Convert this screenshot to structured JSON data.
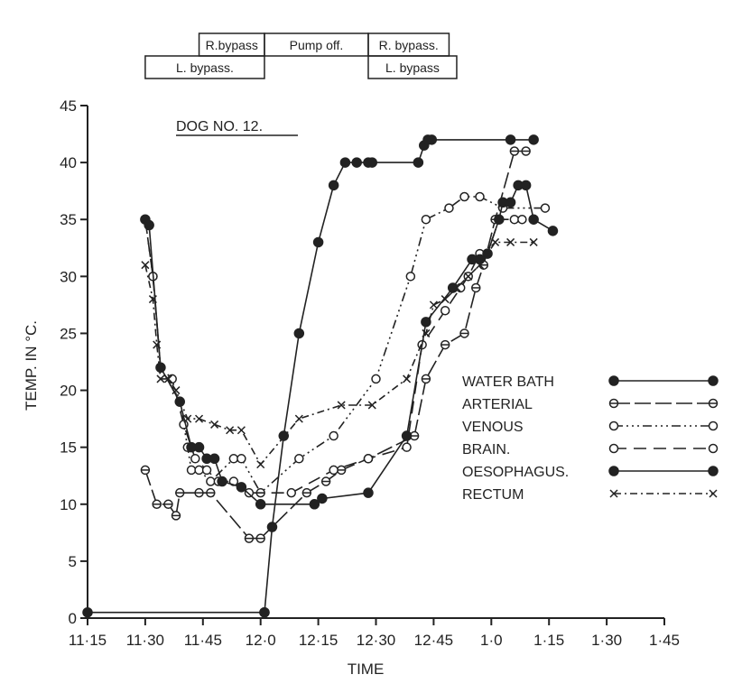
{
  "chart_data": {
    "type": "line",
    "title": "DOG NO. 12.",
    "xlabel": "TIME",
    "ylabel": "TEMP. IN °C.",
    "xlim": [
      0,
      150
    ],
    "ylim": [
      0,
      45
    ],
    "grid": false,
    "legend_position": "center-right",
    "x_ticks": [
      {
        "value": 0,
        "label": "11·15"
      },
      {
        "value": 15,
        "label": "11·30"
      },
      {
        "value": 30,
        "label": "11·45"
      },
      {
        "value": 45,
        "label": "12·0"
      },
      {
        "value": 60,
        "label": "12·15"
      },
      {
        "value": 75,
        "label": "12·30"
      },
      {
        "value": 90,
        "label": "12·45"
      },
      {
        "value": 105,
        "label": "1·0"
      },
      {
        "value": 120,
        "label": "1·15"
      },
      {
        "value": 135,
        "label": "1·30"
      },
      {
        "value": 150,
        "label": "1·45"
      }
    ],
    "y_ticks": [
      {
        "value": 0,
        "label": "0"
      },
      {
        "value": 5,
        "label": "5"
      },
      {
        "value": 10,
        "label": "10"
      },
      {
        "value": 15,
        "label": "15"
      },
      {
        "value": 20,
        "label": "20"
      },
      {
        "value": 25,
        "label": "25"
      },
      {
        "value": 30,
        "label": "30"
      },
      {
        "value": 35,
        "label": "35"
      },
      {
        "value": 40,
        "label": "40"
      },
      {
        "value": 45,
        "label": "45"
      }
    ],
    "phases": [
      {
        "label": "R.bypass",
        "start": 29,
        "end": 46,
        "row": "upper"
      },
      {
        "label": "Pump off.",
        "start": 46,
        "end": 73,
        "row": "upper"
      },
      {
        "label": "R. bypass.",
        "start": 73,
        "end": 94,
        "row": "upper"
      },
      {
        "label": "L. bypass.",
        "start": 15,
        "end": 46,
        "row": "lower"
      },
      {
        "label": "L. bypass",
        "start": 73,
        "end": 96,
        "row": "lower"
      }
    ],
    "series": [
      {
        "name": "WATER BATH",
        "dash": "",
        "marker": "filled",
        "points": [
          [
            0,
            0.5
          ],
          [
            46,
            0.5
          ],
          [
            46,
            0.5
          ],
          [
            48,
            8
          ],
          [
            51,
            16
          ],
          [
            55,
            25
          ],
          [
            60,
            33
          ],
          [
            64,
            38
          ],
          [
            67,
            40
          ],
          [
            70,
            40
          ],
          [
            73,
            40
          ],
          [
            74,
            40
          ],
          [
            86,
            40
          ],
          [
            87.5,
            41.5
          ],
          [
            88.5,
            42
          ],
          [
            89.5,
            42
          ],
          [
            110,
            42
          ],
          [
            116,
            42
          ]
        ]
      },
      {
        "name": "ARTERIAL",
        "dash": "18 5",
        "marker": "crossed",
        "points": [
          [
            15,
            13
          ],
          [
            18,
            10
          ],
          [
            21,
            10
          ],
          [
            23,
            9
          ],
          [
            24,
            11
          ],
          [
            29,
            11
          ],
          [
            32,
            11
          ],
          [
            42,
            7
          ],
          [
            45,
            7
          ],
          [
            57,
            11
          ],
          [
            62,
            12
          ],
          [
            66,
            13
          ],
          [
            73,
            14
          ],
          [
            85,
            16
          ],
          [
            88,
            21
          ],
          [
            93,
            24
          ],
          [
            98,
            25
          ],
          [
            101,
            29
          ],
          [
            103,
            31
          ],
          [
            106,
            35
          ],
          [
            111,
            41
          ],
          [
            114,
            41
          ]
        ]
      },
      {
        "name": "VENOUS",
        "dash": "10 4 2 4 2 4 2 4",
        "marker": "open",
        "points": [
          [
            15,
            35
          ],
          [
            17,
            30
          ],
          [
            19,
            22
          ],
          [
            24,
            19
          ],
          [
            26,
            15
          ],
          [
            27,
            13
          ],
          [
            29,
            13
          ],
          [
            32,
            12
          ],
          [
            38,
            14
          ],
          [
            40,
            14
          ],
          [
            45,
            11
          ],
          [
            55,
            14
          ],
          [
            64,
            16
          ],
          [
            75,
            21
          ],
          [
            84,
            30
          ],
          [
            88,
            35
          ],
          [
            94,
            36
          ],
          [
            98,
            37
          ],
          [
            102,
            37
          ],
          [
            108,
            36
          ],
          [
            119,
            36
          ]
        ]
      },
      {
        "name": "BRAIN.",
        "dash": "14 8",
        "marker": "open",
        "points": [
          [
            15,
            35
          ],
          [
            17,
            30
          ],
          [
            19,
            22
          ],
          [
            22,
            21
          ],
          [
            25,
            17
          ],
          [
            27,
            15
          ],
          [
            28,
            14
          ],
          [
            31,
            13
          ],
          [
            34,
            12
          ],
          [
            38,
            12
          ],
          [
            42,
            11
          ],
          [
            53,
            11
          ],
          [
            64,
            13
          ],
          [
            73,
            14
          ],
          [
            83,
            15
          ],
          [
            87,
            24
          ],
          [
            93,
            27
          ],
          [
            97,
            29
          ],
          [
            99,
            30
          ],
          [
            102,
            32
          ],
          [
            104,
            32
          ],
          [
            107,
            35
          ],
          [
            111,
            35
          ],
          [
            113,
            35
          ]
        ]
      },
      {
        "name": "OESOPHAGUS.",
        "dash": "",
        "marker": "filled",
        "points": [
          [
            15,
            35
          ],
          [
            16,
            34.5
          ],
          [
            19,
            22
          ],
          [
            24,
            19
          ],
          [
            27,
            15
          ],
          [
            29,
            15
          ],
          [
            31,
            14
          ],
          [
            33,
            14
          ],
          [
            35,
            12
          ],
          [
            40,
            11.5
          ],
          [
            45,
            10
          ],
          [
            59,
            10
          ],
          [
            61,
            10.5
          ],
          [
            73,
            11
          ],
          [
            83,
            16
          ],
          [
            88,
            26
          ],
          [
            95,
            29
          ],
          [
            100,
            31.5
          ],
          [
            102,
            31.5
          ],
          [
            104,
            32
          ],
          [
            107,
            35
          ],
          [
            108,
            36.5
          ],
          [
            110,
            36.5
          ],
          [
            112,
            38
          ],
          [
            114,
            38
          ],
          [
            116,
            35
          ],
          [
            121,
            34
          ]
        ]
      },
      {
        "name": "RECTUM",
        "dash": "8 4 2 4",
        "marker": "cross",
        "points": [
          [
            15,
            31
          ],
          [
            17,
            28
          ],
          [
            18,
            24
          ],
          [
            19,
            21
          ],
          [
            21,
            21
          ],
          [
            23,
            20
          ],
          [
            26,
            17.5
          ],
          [
            29,
            17.5
          ],
          [
            33,
            17
          ],
          [
            37,
            16.5
          ],
          [
            40,
            16.5
          ],
          [
            45,
            13.5
          ],
          [
            55,
            17.5
          ],
          [
            66,
            18.7
          ],
          [
            74,
            18.7
          ],
          [
            83,
            21
          ],
          [
            88,
            25
          ],
          [
            90,
            27.5
          ],
          [
            93,
            28
          ],
          [
            96,
            29
          ],
          [
            99,
            30
          ],
          [
            102,
            31
          ],
          [
            106,
            33
          ],
          [
            110,
            33
          ],
          [
            116,
            33
          ]
        ]
      }
    ]
  }
}
